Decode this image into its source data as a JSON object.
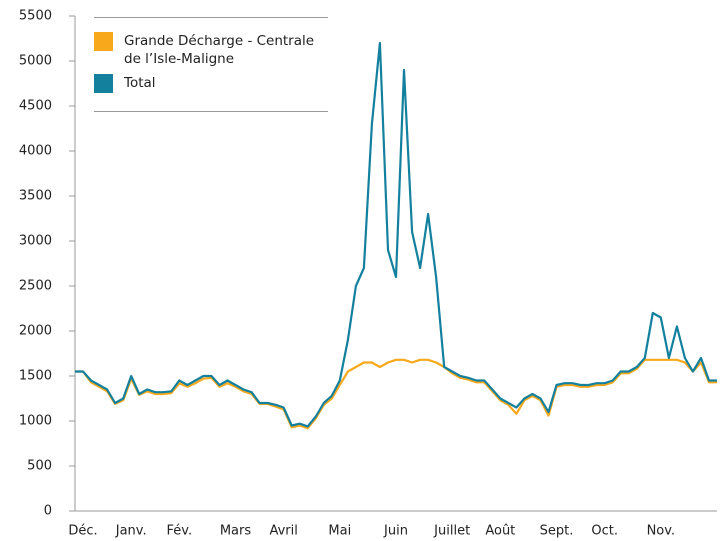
{
  "chart_data": {
    "type": "line",
    "categories": [
      null,
      "Déc.",
      null,
      null,
      null,
      null,
      null,
      "Janv.",
      null,
      null,
      null,
      null,
      null,
      "Fév.",
      null,
      null,
      null,
      null,
      null,
      null,
      "Mars",
      null,
      null,
      null,
      null,
      null,
      "Avril",
      null,
      null,
      null,
      null,
      null,
      null,
      "Mai",
      null,
      null,
      null,
      null,
      null,
      null,
      "Juin",
      null,
      null,
      null,
      null,
      null,
      null,
      "Juillet",
      null,
      null,
      null,
      null,
      null,
      "Août",
      null,
      null,
      null,
      null,
      null,
      null,
      "Sept.",
      null,
      null,
      null,
      null,
      null,
      "Oct.",
      null,
      null,
      null,
      null,
      null,
      null,
      "Nov.",
      null,
      null,
      null,
      null,
      null,
      null,
      null
    ],
    "series": [
      {
        "name": "Grande Décharge - Centrale de l’Isle-Maligne",
        "color": "#f7a81b",
        "values": [
          1550,
          1550,
          1430,
          1380,
          1330,
          1190,
          1230,
          1470,
          1290,
          1330,
          1300,
          1300,
          1310,
          1420,
          1380,
          1420,
          1470,
          1480,
          1380,
          1420,
          1380,
          1330,
          1300,
          1190,
          1190,
          1160,
          1130,
          930,
          950,
          920,
          1030,
          1180,
          1250,
          1400,
          1550,
          1600,
          1650,
          1650,
          1600,
          1650,
          1680,
          1680,
          1650,
          1680,
          1680,
          1650,
          1600,
          1530,
          1480,
          1460,
          1430,
          1430,
          1330,
          1230,
          1180,
          1080,
          1230,
          1280,
          1230,
          1060,
          1380,
          1400,
          1400,
          1380,
          1380,
          1400,
          1400,
          1430,
          1530,
          1530,
          1580,
          1680,
          1680,
          1680,
          1680,
          1680,
          1650,
          1550,
          1650,
          1430,
          1430
        ]
      },
      {
        "name": "Total",
        "color": "#13809e",
        "values": [
          1550,
          1550,
          1450,
          1400,
          1350,
          1200,
          1250,
          1500,
          1300,
          1350,
          1320,
          1320,
          1330,
          1450,
          1400,
          1450,
          1500,
          1500,
          1400,
          1450,
          1400,
          1350,
          1320,
          1200,
          1200,
          1180,
          1150,
          950,
          970,
          940,
          1050,
          1200,
          1280,
          1450,
          1900,
          2500,
          2700,
          4300,
          5200,
          2900,
          2600,
          4900,
          3100,
          2700,
          3300,
          2600,
          1600,
          1550,
          1500,
          1480,
          1450,
          1450,
          1350,
          1250,
          1200,
          1150,
          1250,
          1300,
          1250,
          1100,
          1400,
          1420,
          1420,
          1400,
          1400,
          1420,
          1420,
          1450,
          1550,
          1550,
          1600,
          1700,
          2200,
          2150,
          1700,
          2050,
          1700,
          1550,
          1700,
          1450,
          1450
        ]
      }
    ],
    "ylim": [
      0,
      5500
    ],
    "yticks": [
      0,
      500,
      1000,
      1500,
      2000,
      2500,
      3000,
      3500,
      4000,
      4500,
      5000,
      5500
    ]
  }
}
